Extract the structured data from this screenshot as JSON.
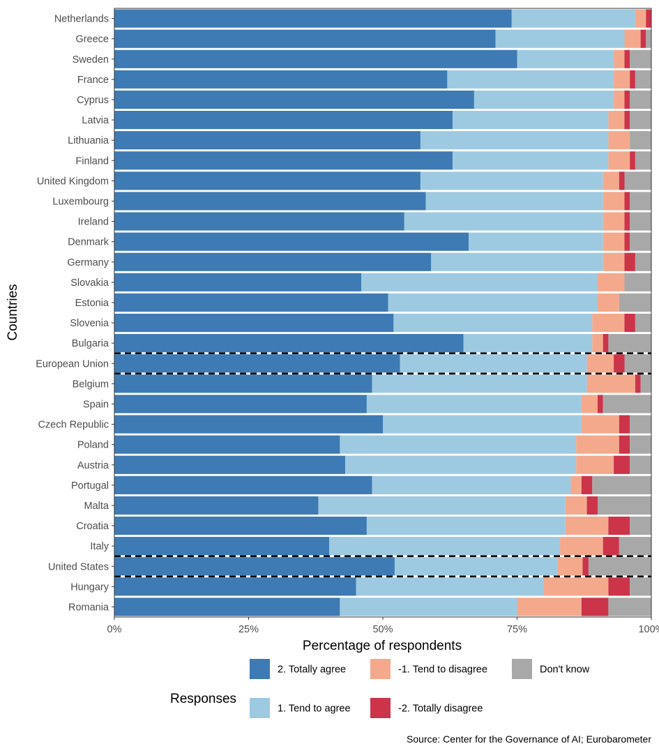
{
  "chart_data": {
    "type": "bar",
    "orientation": "horizontal",
    "stacked": true,
    "xlabel": "Percentage of respondents",
    "ylabel": "Countries",
    "xlim": [
      0,
      100
    ],
    "xticks": [
      0,
      25,
      50,
      75,
      100
    ],
    "xtick_labels": [
      "0%",
      "25%",
      "50%",
      "75%",
      "100%"
    ],
    "grid": false,
    "legend_title": "Responses",
    "legend_position": "bottom",
    "source": "Source: Center for the Governance of AI; Eurobarometer",
    "dashed_separators_around": [
      "European Union",
      "United States"
    ],
    "categories": [
      "Netherlands",
      "Greece",
      "Sweden",
      "France",
      "Cyprus",
      "Latvia",
      "Lithuania",
      "Finland",
      "United Kingdom",
      "Luxembourg",
      "Ireland",
      "Denmark",
      "Germany",
      "Slovakia",
      "Estonia",
      "Slovenia",
      "Bulgaria",
      "European Union",
      "Belgium",
      "Spain",
      "Czech Republic",
      "Poland",
      "Austria",
      "Portugal",
      "Malta",
      "Croatia",
      "Italy",
      "United States",
      "Hungary",
      "Romania"
    ],
    "series": [
      {
        "name": "2. Totally agree",
        "color": "#3e7ab4",
        "values": [
          74,
          71,
          75,
          62,
          67,
          63,
          57,
          63,
          57,
          58,
          54,
          66,
          59,
          46,
          51,
          52,
          65,
          53.2,
          48,
          47,
          50,
          42,
          43,
          48,
          38,
          47,
          40,
          52.2,
          45,
          42
        ]
      },
      {
        "name": "1. Tend to agree",
        "color": "#9ecae1",
        "values": [
          23,
          24,
          18,
          31,
          26,
          29,
          35,
          29,
          34,
          33,
          37,
          25,
          32,
          44,
          39,
          37,
          24,
          34.8,
          40,
          40,
          37,
          44,
          43,
          37,
          46,
          37,
          43,
          30.3,
          35,
          33
        ]
      },
      {
        "name": "-1. Tend to disagree",
        "color": "#f4a98c",
        "values": [
          2,
          3,
          2,
          3,
          2,
          3,
          4,
          4,
          3,
          4,
          4,
          4,
          4,
          5,
          4,
          6,
          2,
          5,
          9,
          3,
          7,
          8,
          7,
          2,
          4,
          8,
          8,
          4.7,
          12,
          12
        ]
      },
      {
        "name": "-2. Totally disagree",
        "color": "#cb3449",
        "values": [
          1,
          1,
          1,
          1,
          1,
          1,
          0,
          1,
          1,
          1,
          1,
          1,
          2,
          0,
          0,
          2,
          1,
          2,
          1,
          1,
          2,
          2,
          3,
          2,
          2,
          4,
          3,
          1.1,
          4,
          5
        ]
      },
      {
        "name": "Don't know",
        "color": "#a8a8a8",
        "values": [
          0,
          1,
          4,
          3,
          4,
          4,
          4,
          3,
          5,
          4,
          4,
          4,
          3,
          5,
          6,
          3,
          8,
          5,
          2,
          9,
          4,
          4,
          4,
          11,
          10,
          4,
          6,
          11.7,
          4,
          8
        ]
      }
    ]
  }
}
